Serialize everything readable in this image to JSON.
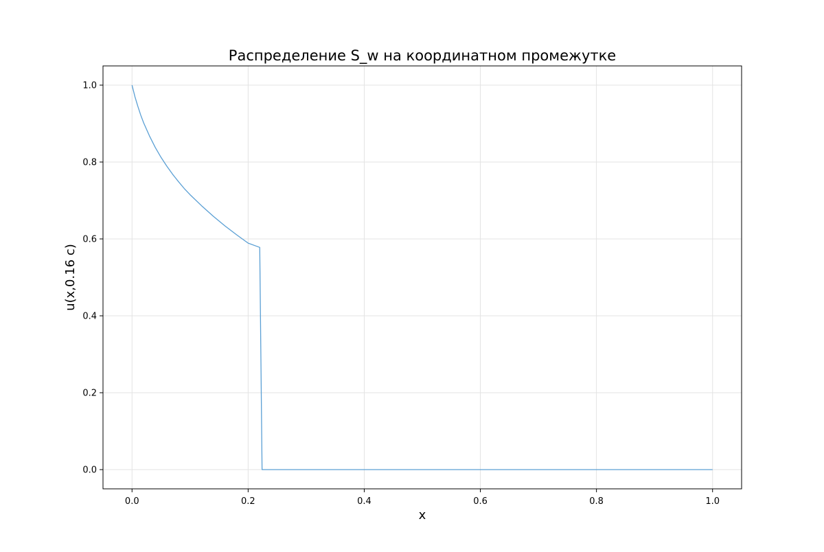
{
  "chart_data": {
    "type": "line",
    "title": "Распределение S_w на координатном промежутке",
    "xlabel": "x",
    "ylabel": "u(x,0.16 с)",
    "xlim": [
      -0.05,
      1.05
    ],
    "ylim": [
      -0.05,
      1.05
    ],
    "xticks": [
      0.0,
      0.2,
      0.4,
      0.6,
      0.8,
      1.0
    ],
    "xtick_labels": [
      "0.0",
      "0.2",
      "0.4",
      "0.6",
      "0.8",
      "1.0"
    ],
    "yticks": [
      0.0,
      0.2,
      0.4,
      0.6,
      0.8,
      1.0
    ],
    "ytick_labels": [
      "0.0",
      "0.2",
      "0.4",
      "0.6",
      "0.8",
      "1.0"
    ],
    "grid": true,
    "line_color": "#5a9fd4",
    "series": [
      {
        "x": [
          0.0,
          0.005,
          0.01,
          0.015,
          0.02,
          0.03,
          0.04,
          0.05,
          0.06,
          0.07,
          0.08,
          0.09,
          0.1,
          0.12,
          0.14,
          0.16,
          0.18,
          0.2,
          0.22,
          0.224,
          0.25,
          0.3,
          0.4,
          0.5,
          0.6,
          0.7,
          0.8,
          0.9,
          1.0
        ],
        "y": [
          1.0,
          0.97,
          0.945,
          0.922,
          0.902,
          0.868,
          0.838,
          0.812,
          0.789,
          0.768,
          0.749,
          0.731,
          0.715,
          0.686,
          0.659,
          0.634,
          0.611,
          0.589,
          0.578,
          0.0,
          0.0,
          0.0,
          0.0,
          0.0,
          0.0,
          0.0,
          0.0,
          0.0,
          0.0
        ]
      }
    ]
  }
}
